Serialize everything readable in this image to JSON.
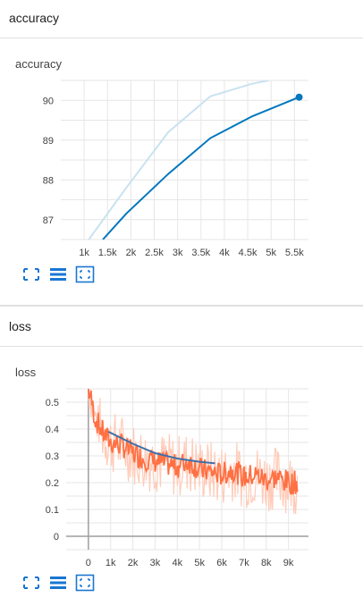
{
  "sections": {
    "accuracy": {
      "header_title": "accuracy",
      "card_title": "accuracy"
    },
    "loss": {
      "header_title": "loss",
      "card_title": "loss"
    }
  },
  "toolbar": {
    "icons": [
      "fullscreen-icon",
      "data-table-icon",
      "fit-domain-icon"
    ]
  },
  "colors": {
    "accent_blue": "#0277bd",
    "light_blue": "#c9e2f0",
    "orange": "#ff7043",
    "orange_light": "#ffcbb8",
    "grid": "#e6e6e6",
    "axis": "#9e9e9e"
  },
  "chart_data": [
    {
      "type": "line",
      "title": "accuracy",
      "x_ticks": [
        "1k",
        "1.5k",
        "2k",
        "2.5k",
        "3k",
        "3.5k",
        "4k",
        "4.5k",
        "5k",
        "5.5k"
      ],
      "x_tick_values": [
        1000,
        1500,
        2000,
        2500,
        3000,
        3500,
        4000,
        4500,
        5000,
        5500
      ],
      "y_ticks": [
        "87",
        "88",
        "89",
        "90"
      ],
      "y_tick_values": [
        87,
        88,
        89,
        90
      ],
      "xlim": [
        500,
        5800
      ],
      "ylim": [
        86.5,
        90.5
      ],
      "grid": true,
      "series": [
        {
          "role": "smoothed",
          "color": "#0277bd",
          "x": [
            1400,
            1900,
            2800,
            3700,
            4600,
            5600
          ],
          "y": [
            86.5,
            87.15,
            88.15,
            89.05,
            89.6,
            90.08
          ]
        },
        {
          "role": "raw",
          "color": "#c9e2f0",
          "x": [
            1100,
            1900,
            2800,
            3700,
            4600,
            4950
          ],
          "y": [
            86.5,
            87.8,
            89.2,
            90.1,
            90.42,
            90.5
          ]
        }
      ],
      "highlight_point": {
        "x": 5600,
        "y": 90.08
      }
    },
    {
      "type": "line",
      "title": "loss",
      "x_ticks": [
        "0",
        "1k",
        "2k",
        "3k",
        "4k",
        "5k",
        "6k",
        "7k",
        "8k",
        "9k"
      ],
      "x_tick_values": [
        0,
        1000,
        2000,
        3000,
        4000,
        5000,
        6000,
        7000,
        8000,
        9000
      ],
      "y_ticks": [
        "0",
        "0.1",
        "0.2",
        "0.3",
        "0.4",
        "0.5"
      ],
      "y_tick_values": [
        0,
        0.1,
        0.2,
        0.3,
        0.4,
        0.5
      ],
      "xlim": [
        -1000,
        9900
      ],
      "ylim": [
        -0.05,
        0.55
      ],
      "grid": true,
      "series": [
        {
          "role": "smoothed",
          "color": "#ff7043",
          "x": [
            0,
            150,
            300,
            500,
            700,
            1000,
            1500,
            2000,
            2500,
            3000,
            3500,
            4000,
            4500,
            5000,
            5500,
            6000,
            6500,
            7000,
            7500,
            8000,
            8500,
            9000,
            9400
          ],
          "y": [
            0.55,
            0.5,
            0.44,
            0.41,
            0.38,
            0.35,
            0.34,
            0.31,
            0.29,
            0.28,
            0.27,
            0.26,
            0.28,
            0.25,
            0.24,
            0.23,
            0.25,
            0.22,
            0.23,
            0.21,
            0.22,
            0.2,
            0.2
          ]
        },
        {
          "role": "trend",
          "color": "#3f6fa8",
          "x": [
            900,
            2000,
            3000,
            4000,
            5000,
            5700
          ],
          "y": [
            0.39,
            0.345,
            0.31,
            0.29,
            0.278,
            0.272
          ]
        }
      ]
    }
  ]
}
